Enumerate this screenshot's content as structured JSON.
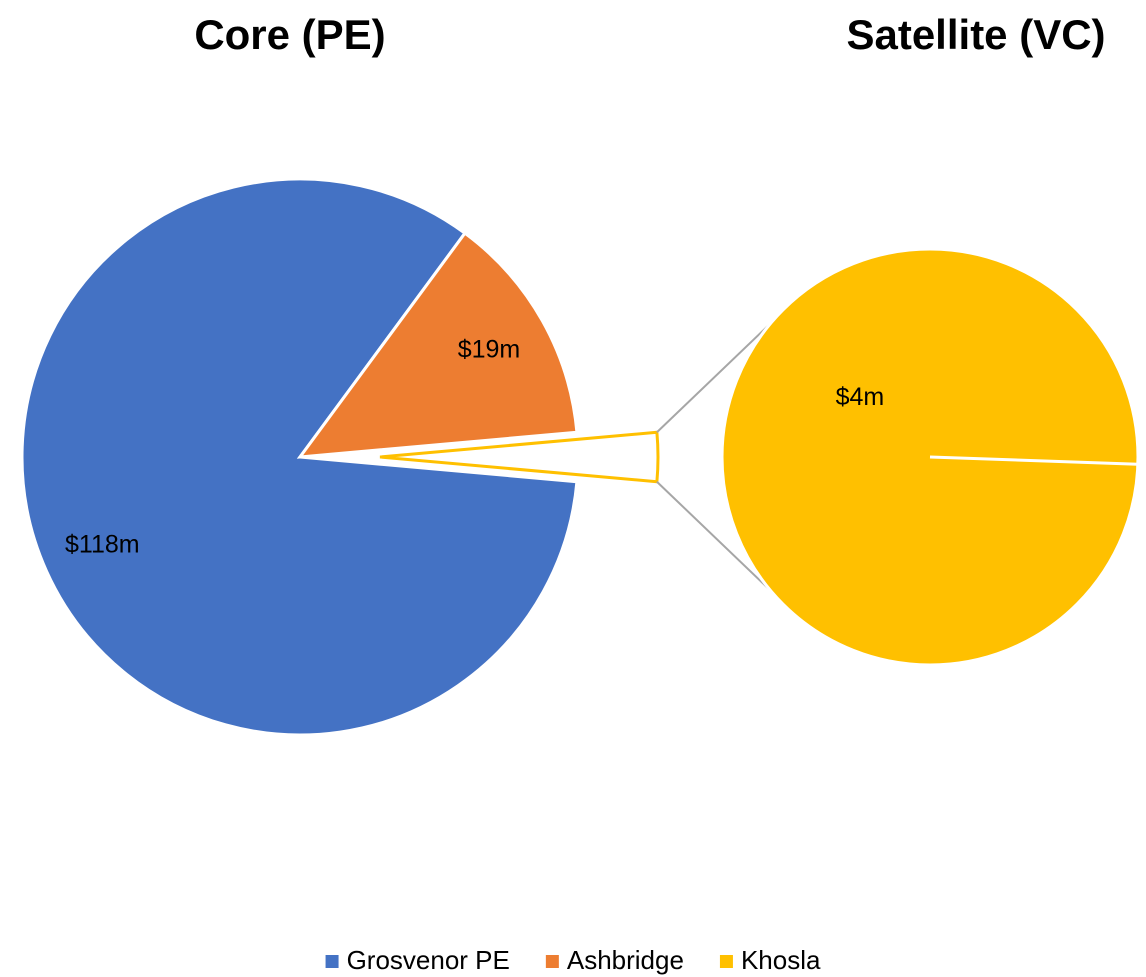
{
  "chart_data": {
    "type": "pie",
    "title": "Core (PE)",
    "secondary_title": "Satellite (VC)",
    "categories": [
      "Grosvenor PE",
      "Ashbridge",
      "Khosla"
    ],
    "values": [
      118,
      19,
      4
    ],
    "value_labels": [
      "$118m",
      "$19m",
      "$4m"
    ],
    "colors": [
      "#4472c4",
      "#ed7d31",
      "#ffc000"
    ],
    "secondary_count": 1,
    "legend": "bottom"
  }
}
